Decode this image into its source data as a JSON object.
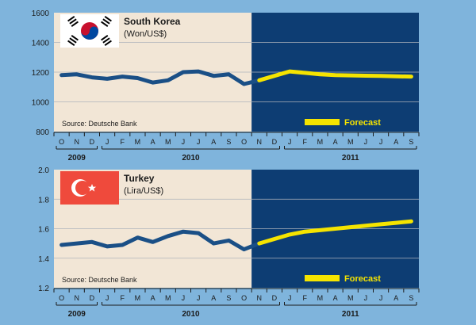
{
  "colors": {
    "background": "#7fb4dc",
    "history_panel": "#f2e6d6",
    "forecast_panel": "#0d3d73",
    "history_line": "#1a4f86",
    "forecast_line": "#f5e400",
    "grid": "#aeb3bb",
    "text": "#1b1b1b"
  },
  "months": [
    "O",
    "N",
    "D",
    "J",
    "F",
    "M",
    "A",
    "M",
    "J",
    "J",
    "A",
    "S",
    "O",
    "N",
    "D",
    "J",
    "F",
    "M",
    "A",
    "M",
    "J",
    "J",
    "A",
    "S"
  ],
  "years": [
    {
      "label": "2009",
      "start": 0,
      "end": 2
    },
    {
      "label": "2010",
      "start": 3,
      "end": 14
    },
    {
      "label": "2011",
      "start": 15,
      "end": 23
    }
  ],
  "chart_data": [
    {
      "type": "line",
      "title": "South Korea",
      "subtitle": "(Won/US$)",
      "flag": "south-korea-flag-icon",
      "source": "Source: Deutsche Bank",
      "legend_label": "Forecast",
      "legend_position": "bottom-right",
      "grid": true,
      "ylim": [
        800,
        1600
      ],
      "yticks": [
        800,
        1000,
        1200,
        1400,
        1600
      ],
      "forecast_start": "N",
      "series": [
        {
          "name": "",
          "kind": "history",
          "x": [
            "O",
            "N",
            "D",
            "J",
            "F",
            "M",
            "A",
            "M",
            "J",
            "J",
            "A",
            "S",
            "O",
            "N"
          ],
          "values": [
            1180,
            1185,
            1165,
            1155,
            1170,
            1160,
            1130,
            1145,
            1200,
            1205,
            1175,
            1185,
            1120,
            1145
          ]
        },
        {
          "name": "Forecast",
          "kind": "forecast",
          "x": [
            "N",
            "D",
            "J",
            "F",
            "M",
            "A",
            "M",
            "J",
            "J",
            "A",
            "S"
          ],
          "values": [
            1145,
            1175,
            1205,
            1195,
            1185,
            1180,
            1178,
            1176,
            1175,
            1172,
            1170
          ]
        }
      ]
    },
    {
      "type": "line",
      "title": "Turkey",
      "subtitle": "(Lira/US$)",
      "flag": "turkey-flag-icon",
      "source": "Source: Deutsche Bank",
      "legend_label": "Forecast",
      "legend_position": "bottom-right",
      "grid": true,
      "ylim": [
        1.2,
        2.0
      ],
      "yticks": [
        1.2,
        1.4,
        1.6,
        1.8,
        2.0
      ],
      "forecast_start": "N",
      "series": [
        {
          "name": "",
          "kind": "history",
          "x": [
            "O",
            "N",
            "D",
            "J",
            "F",
            "M",
            "A",
            "M",
            "J",
            "J",
            "A",
            "S",
            "O",
            "N"
          ],
          "values": [
            1.49,
            1.5,
            1.51,
            1.48,
            1.49,
            1.54,
            1.51,
            1.55,
            1.58,
            1.57,
            1.5,
            1.52,
            1.46,
            1.5
          ]
        },
        {
          "name": "Forecast",
          "kind": "forecast",
          "x": [
            "N",
            "D",
            "J",
            "F",
            "M",
            "A",
            "M",
            "J",
            "J",
            "A",
            "S"
          ],
          "values": [
            1.5,
            1.53,
            1.56,
            1.58,
            1.59,
            1.6,
            1.61,
            1.62,
            1.63,
            1.64,
            1.65
          ]
        }
      ]
    }
  ]
}
